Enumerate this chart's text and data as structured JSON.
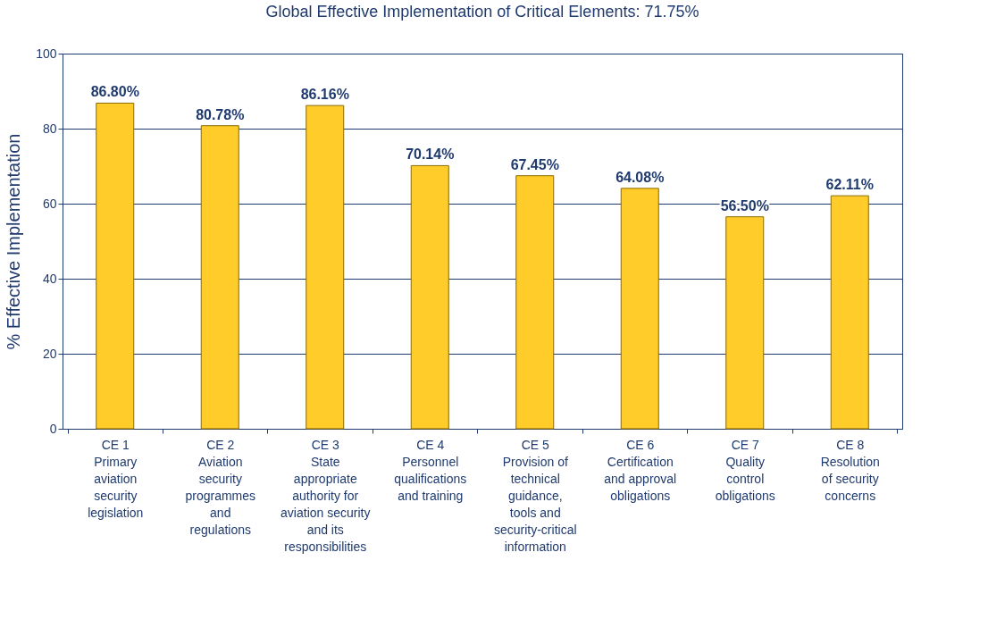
{
  "chart_data": {
    "type": "bar",
    "title": "Global Effective Implementation of Critical Elements: 71.75%",
    "ylabel": "% Effective Implementation",
    "categories": [
      "CE 1\n\nPrimary\naviation\nsecurity\nlegislation",
      "CE 2\n\nAviation\nsecurity\nprogrammes\nand\nregulations",
      "CE 3\n\nState\nappropriate\nauthority for\naviation security\nand its\nresponsibilities",
      "CE 4\n\nPersonnel\nqualifications\nand training",
      "CE 5\n\nProvision of\ntechnical\nguidance,\ntools and\nsecurity-critical\ninformation",
      "CE 6\n\nCertification\nand  approval\nobligations",
      "CE 7\n\nQuality\ncontrol\nobligations",
      "CE 8\n\nResolution\nof security\nconcerns"
    ],
    "values": [
      86.8,
      80.78,
      86.16,
      70.14,
      67.45,
      64.08,
      56.5,
      62.11
    ],
    "value_labels": [
      "86.80%",
      "80.78%",
      "86.16%",
      "70.14%",
      "67.45%",
      "64.08%",
      "56.50%",
      "62.11%"
    ],
    "color": "#ffcc29",
    "ylim": [
      0,
      100
    ],
    "yticks": [
      0,
      20,
      40,
      60,
      80,
      100
    ],
    "grid": "y"
  }
}
